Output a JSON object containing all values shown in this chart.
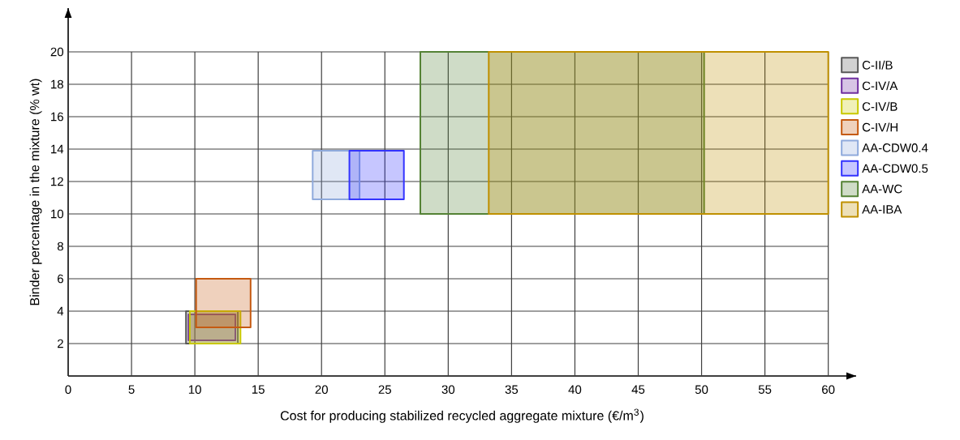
{
  "chart_data": {
    "type": "area",
    "xlabel": "Cost for producing stabilized recycled aggregate mixture (€/m$^{3}$)",
    "ylabel": "Binder percentage in the mixture (% wt)",
    "xlim": [
      0,
      62.2
    ],
    "ylim": [
      0,
      22.7
    ],
    "xticks": [
      0,
      5,
      10,
      15,
      20,
      25,
      30,
      35,
      40,
      45,
      50,
      55,
      60
    ],
    "yticks": [
      2,
      4,
      6,
      8,
      10,
      12,
      14,
      16,
      18,
      20
    ],
    "grid": true,
    "legend": "right",
    "marker": "none",
    "series": [
      {
        "name": "C-II/B",
        "color": "#595959",
        "x": [
          9.3,
          13.4,
          13.4,
          9.3
        ],
        "values": [
          2,
          2,
          4,
          4
        ]
      },
      {
        "name": "C-IV/A",
        "color": "#7030a0",
        "x": [
          9.5,
          13.2,
          13.2,
          9.5
        ],
        "values": [
          2.2,
          2.2,
          3.8,
          3.8
        ]
      },
      {
        "name": "C-IV/B",
        "color": "#c8c800",
        "x": [
          9.6,
          13.6,
          13.6,
          9.6
        ],
        "values": [
          2,
          2,
          4,
          4
        ]
      },
      {
        "name": "C-IV/H",
        "color": "#c55a11",
        "x": [
          10.1,
          14.4,
          14.4,
          10.1
        ],
        "values": [
          3,
          3,
          6,
          6
        ]
      },
      {
        "name": "AA-CDW0.4",
        "color": "#8faadc",
        "x": [
          19.3,
          23,
          23,
          19.3
        ],
        "values": [
          10.9,
          10.9,
          13.9,
          13.9
        ]
      },
      {
        "name": "AA-CDW0.5",
        "color": "#3333ff",
        "x": [
          22.2,
          26.5,
          26.5,
          22.2
        ],
        "values": [
          10.9,
          10.9,
          13.9,
          13.9
        ]
      },
      {
        "name": "AA-WC",
        "color": "#548235",
        "x": [
          27.8,
          50.2,
          50.2,
          27.8
        ],
        "values": [
          10,
          10,
          20,
          20
        ]
      },
      {
        "name": "AA-IBA",
        "color": "#bf9000",
        "x": [
          33.2,
          60,
          60,
          33.2
        ],
        "values": [
          10,
          10,
          20,
          20
        ]
      }
    ]
  }
}
